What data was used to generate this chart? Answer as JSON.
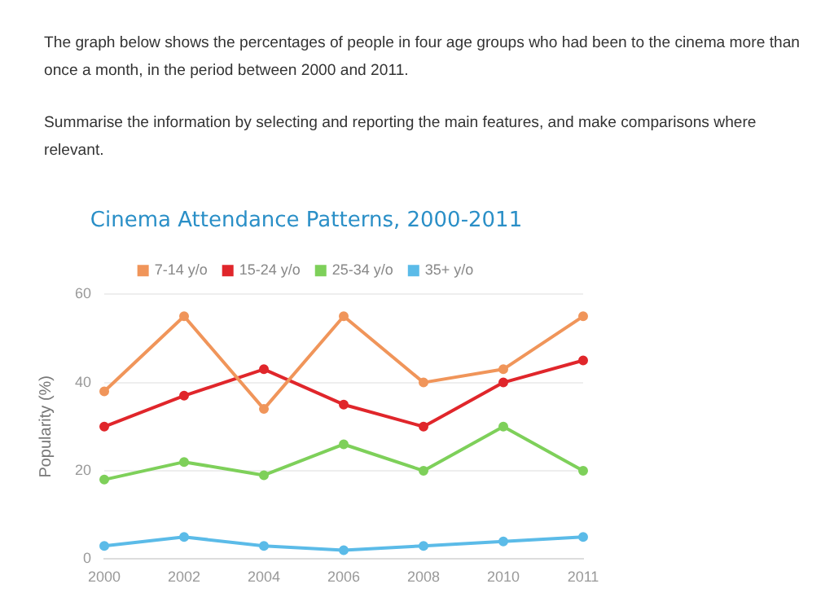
{
  "chart_data": {
    "type": "line",
    "title": "Cinema Attendance Patterns, 2000-2011",
    "ylabel": "Popularity (%)",
    "annotations": [
      "The graph below shows the percentages of people in four age groups who had been to the cinema more than once a month, in the period between 2000 and 2011.",
      "Summarise the information by selecting and reporting the main features, and make comparisons where relevant."
    ],
    "categories": [
      "2000",
      "2002",
      "2004",
      "2006",
      "2008",
      "2010",
      "2011"
    ],
    "series": [
      {
        "name": "7-14 y/o",
        "color": "#f0955a",
        "values": [
          38,
          55,
          34,
          55,
          40,
          43,
          55
        ]
      },
      {
        "name": "15-24 y/o",
        "color": "#e0262b",
        "values": [
          30,
          37,
          43,
          35,
          30,
          40,
          45
        ]
      },
      {
        "name": "25-34 y/o",
        "color": "#7ed05a",
        "values": [
          18,
          22,
          19,
          26,
          20,
          30,
          20
        ]
      },
      {
        "name": "35+ y/o",
        "color": "#5bbbe8",
        "values": [
          3,
          5,
          3,
          2,
          3,
          4,
          5
        ]
      }
    ],
    "ylim": [
      0,
      60
    ],
    "yticks": [
      0,
      20,
      40,
      60
    ],
    "grid": "y",
    "legend": "top",
    "marker": "circle",
    "line_style": "solid"
  }
}
